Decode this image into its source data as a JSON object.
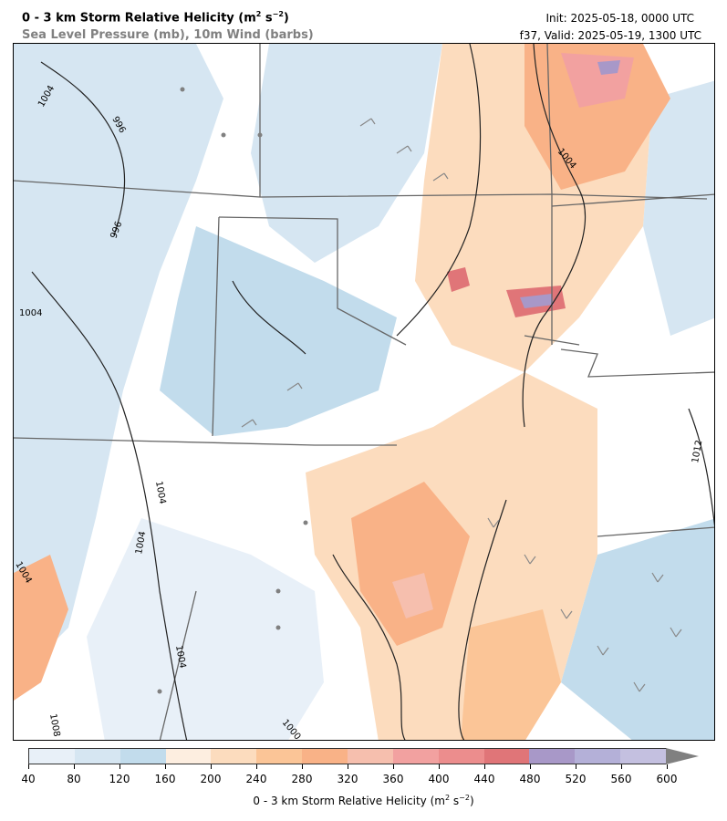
{
  "header": {
    "title": "0 - 3 km Storm Relative Helicity (m",
    "title_units_tail": ")",
    "subtitle": "Sea Level Pressure (mb), 10m Wind (barbs)",
    "init": "Init: 2025-05-18, 0000 UTC",
    "valid": "f37, Valid: 2025-05-19, 1300 UTC",
    "sup_2": "2",
    "sup_neg2": "−2",
    "s_unit": " s"
  },
  "map": {
    "isobar_labels": [
      "1004",
      "996",
      "1004",
      "996",
      "1004",
      "1004",
      "1004",
      "1004",
      "1004",
      "1000",
      "1012",
      "1008",
      "1004"
    ],
    "colors": {
      "background": "#ffffff",
      "state_border": "#666666",
      "county_border": "#bbbbbb",
      "isobar": "#222222",
      "barb": "#888888"
    }
  },
  "colorbar": {
    "label": "0 - 3 km Storm Relative Helicity (m",
    "label_tail": ")",
    "ticks": [
      "40",
      "80",
      "120",
      "160",
      "200",
      "240",
      "280",
      "320",
      "360",
      "400",
      "440",
      "480",
      "520",
      "560",
      "600"
    ],
    "colors": [
      "#e8f0f8",
      "#d6e6f2",
      "#c2dcec",
      "#fdeee0",
      "#fcdcbe",
      "#fbc597",
      "#f9b287",
      "#f6bfae",
      "#f2a1a0",
      "#ec8d8d",
      "#e07578",
      "#a898c8",
      "#b4b0d8",
      "#c4c0e0"
    ],
    "extend_color": "#808080"
  }
}
